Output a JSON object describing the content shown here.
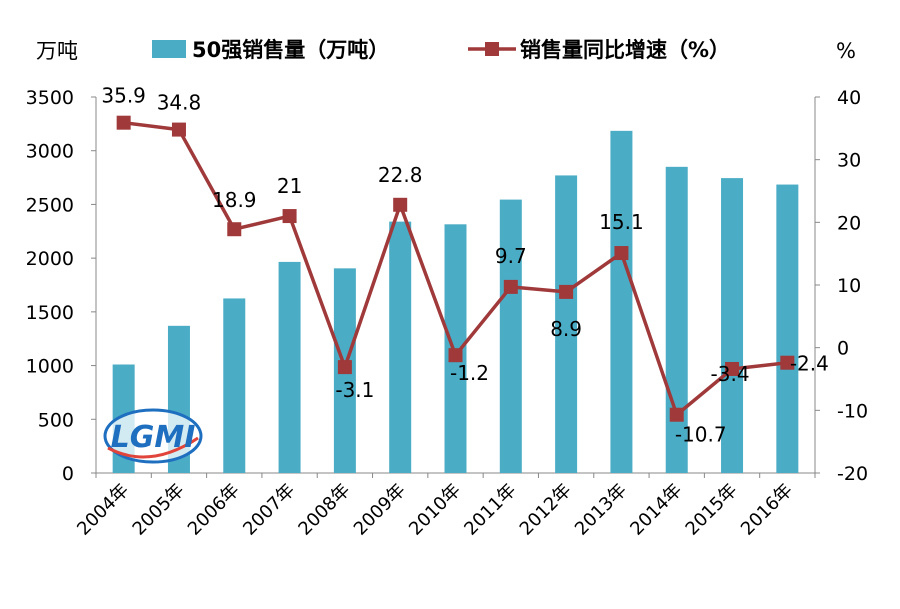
{
  "chart_data": {
    "type": "bar",
    "categories": [
      "2004年",
      "2005年",
      "2006年",
      "2007年",
      "2008年",
      "2009年",
      "2010年",
      "2011年",
      "2012年",
      "2013年",
      "2014年",
      "2015年",
      "2016年"
    ],
    "series": [
      {
        "name": "50强销售量（万吨）",
        "type": "bar",
        "axis": "left",
        "color": "#4BACC6",
        "values": [
          1010,
          1370,
          1625,
          1965,
          1905,
          2340,
          2315,
          2545,
          2770,
          3185,
          2850,
          2745,
          2685
        ]
      },
      {
        "name": "销售量同比增速（%）",
        "type": "line",
        "axis": "right",
        "color": "#A0393A",
        "values": [
          35.9,
          34.8,
          18.9,
          21,
          -3.1,
          22.8,
          -1.2,
          9.7,
          8.9,
          15.1,
          -10.7,
          -3.4,
          -2.4
        ],
        "labels": [
          "35.9",
          "34.8",
          "18.9",
          "21",
          "-3.1",
          "22.8",
          "-1.2",
          "9.7",
          "8.9",
          "15.1",
          "-10.7",
          "-3.4",
          "-2.4"
        ]
      }
    ],
    "y_left": {
      "unit": "万吨",
      "ylim": [
        0,
        3500
      ],
      "ticks": [
        "0",
        "500",
        "1000",
        "1500",
        "2000",
        "2500",
        "3000",
        "3500"
      ]
    },
    "y_right": {
      "unit": "%",
      "ylim": [
        -20,
        40
      ],
      "ticks": [
        "-20",
        "-10",
        "0",
        "10",
        "20",
        "30",
        "40"
      ]
    },
    "grid": false,
    "legend_position": "top"
  },
  "watermark": {
    "text": "LGMI",
    "colors": [
      "#1f6fc0",
      "#e0443a"
    ]
  }
}
